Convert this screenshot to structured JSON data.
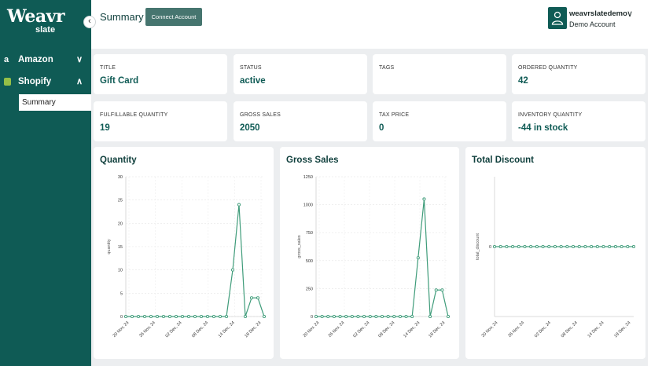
{
  "brand": {
    "name": "Weavr",
    "sub": "slate",
    "collapse_glyph": "‹"
  },
  "sidebar": {
    "items": [
      {
        "label": "Amazon",
        "icon": "amazon-icon",
        "glyph": "a",
        "chevron": "∨",
        "expanded": false
      },
      {
        "label": "Shopify",
        "icon": "shopify-icon",
        "chevron": "∧",
        "expanded": true
      }
    ],
    "sub_items": [
      {
        "label": "Summary",
        "active": true
      }
    ]
  },
  "header": {
    "title": "Summary",
    "connect_label": "Connect Account",
    "user_name": "weavrslatedemo",
    "user_role": "Demo Account",
    "user_chevron": "∨"
  },
  "stats": [
    {
      "key": "TITLE",
      "value": "Gift Card"
    },
    {
      "key": "STATUS",
      "value": "active"
    },
    {
      "key": "TAGS",
      "value": ""
    },
    {
      "key": "ORDERED QUANTITY",
      "value": "42"
    },
    {
      "key": "FULFILLABLE QUANTITY",
      "value": "19"
    },
    {
      "key": "GROSS SALES",
      "value": "2050"
    },
    {
      "key": "TAX PRICE",
      "value": "0"
    },
    {
      "key": "INVENTORY QUANTITY",
      "value": "-44 in stock"
    }
  ],
  "colors": {
    "accent": "#0f5b55",
    "line": "#3f9c7a",
    "sidebar": "#0f5b55"
  },
  "chart_data": [
    {
      "type": "line",
      "title": "Quantity",
      "ylabel": "quantity",
      "ylim": [
        0,
        30
      ],
      "yticks": [
        "0",
        "5",
        "10",
        "15",
        "20",
        "25",
        "30"
      ],
      "xticks": [
        "20 Nov, 24",
        "26 Nov, 24",
        "02 Dec, 24",
        "08 Dec, 24",
        "14 Dec, 24",
        "18 Dec, 24"
      ],
      "grid": true,
      "series": [
        {
          "values": [
            0,
            0,
            0,
            0,
            0,
            0,
            0,
            0,
            0,
            0,
            0,
            0,
            0,
            0,
            0,
            0,
            0,
            10,
            24,
            0,
            4,
            4,
            0
          ]
        }
      ]
    },
    {
      "type": "line",
      "title": "Gross Sales",
      "ylabel": "gross_sales",
      "ylim": [
        0,
        1250
      ],
      "yticks": [
        "0",
        "250",
        "500",
        "750",
        "1000",
        "1250"
      ],
      "xticks": [
        "20 Nov, 24",
        "26 Nov, 24",
        "02 Dec, 24",
        "08 Dec, 24",
        "14 Dec, 24",
        "18 Dec, 24"
      ],
      "grid": true,
      "series": [
        {
          "values": [
            0,
            0,
            0,
            0,
            0,
            0,
            0,
            0,
            0,
            0,
            0,
            0,
            0,
            0,
            0,
            0,
            0,
            525,
            1050,
            0,
            237,
            237,
            0
          ]
        }
      ]
    },
    {
      "type": "line",
      "title": "Total Discount",
      "ylabel": "total_discount",
      "ylim": [
        -1,
        1
      ],
      "yticks": [
        "0"
      ],
      "xticks": [
        "20 Nov, 24",
        "26 Nov, 24",
        "02 Dec, 24",
        "08 Dec, 24",
        "14 Dec, 24",
        "18 Dec, 24"
      ],
      "grid": false,
      "series": [
        {
          "values": [
            0,
            0,
            0,
            0,
            0,
            0,
            0,
            0,
            0,
            0,
            0,
            0,
            0,
            0,
            0,
            0,
            0,
            0,
            0,
            0,
            0,
            0,
            0,
            0
          ]
        }
      ]
    }
  ]
}
